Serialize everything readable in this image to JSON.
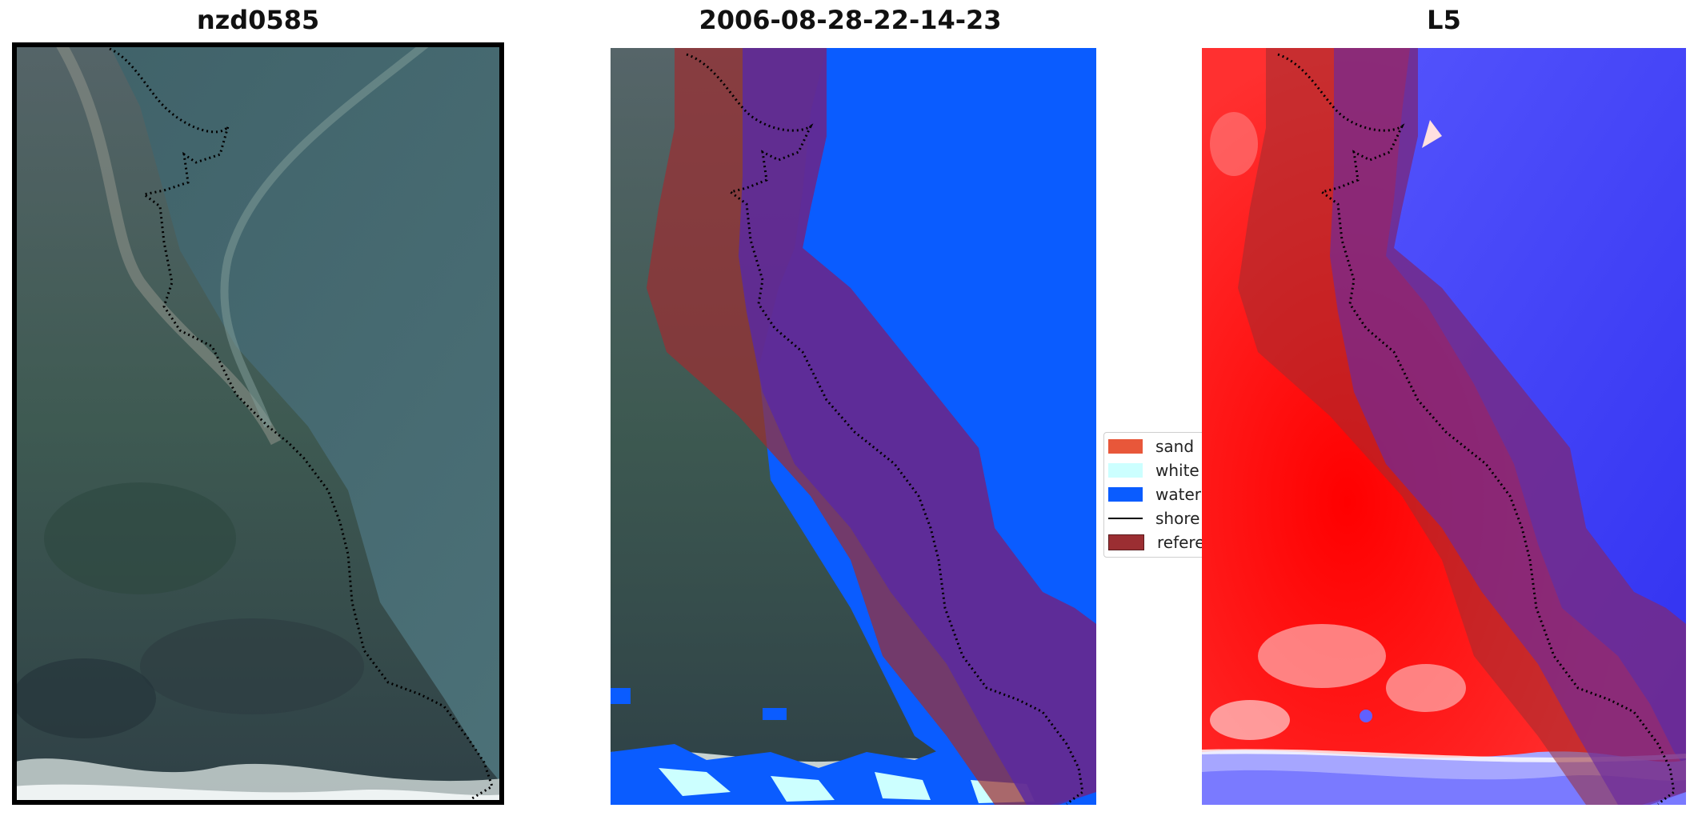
{
  "panels": [
    {
      "title": "nzd0585"
    },
    {
      "title": "2006-08-28-22-14-23"
    },
    {
      "title": "L5"
    }
  ],
  "legend": {
    "items": [
      {
        "label": "sand",
        "color": "#e8573a",
        "kind": "patch"
      },
      {
        "label": "white",
        "color": "#ccffff",
        "kind": "patch"
      },
      {
        "label": "water",
        "color": "#0a5cff",
        "kind": "patch"
      },
      {
        "label": "shore",
        "color": "#000000",
        "kind": "line"
      },
      {
        "label": "refere",
        "color": "#9b2e32",
        "kind": "patch"
      }
    ]
  },
  "colors": {
    "water": "#0a5cff",
    "white_water": "#ccffff",
    "reference_buffer": "#9b2e32",
    "shoreline": "#000000",
    "index_high": "#ff0000",
    "index_low": "#0000ff"
  }
}
